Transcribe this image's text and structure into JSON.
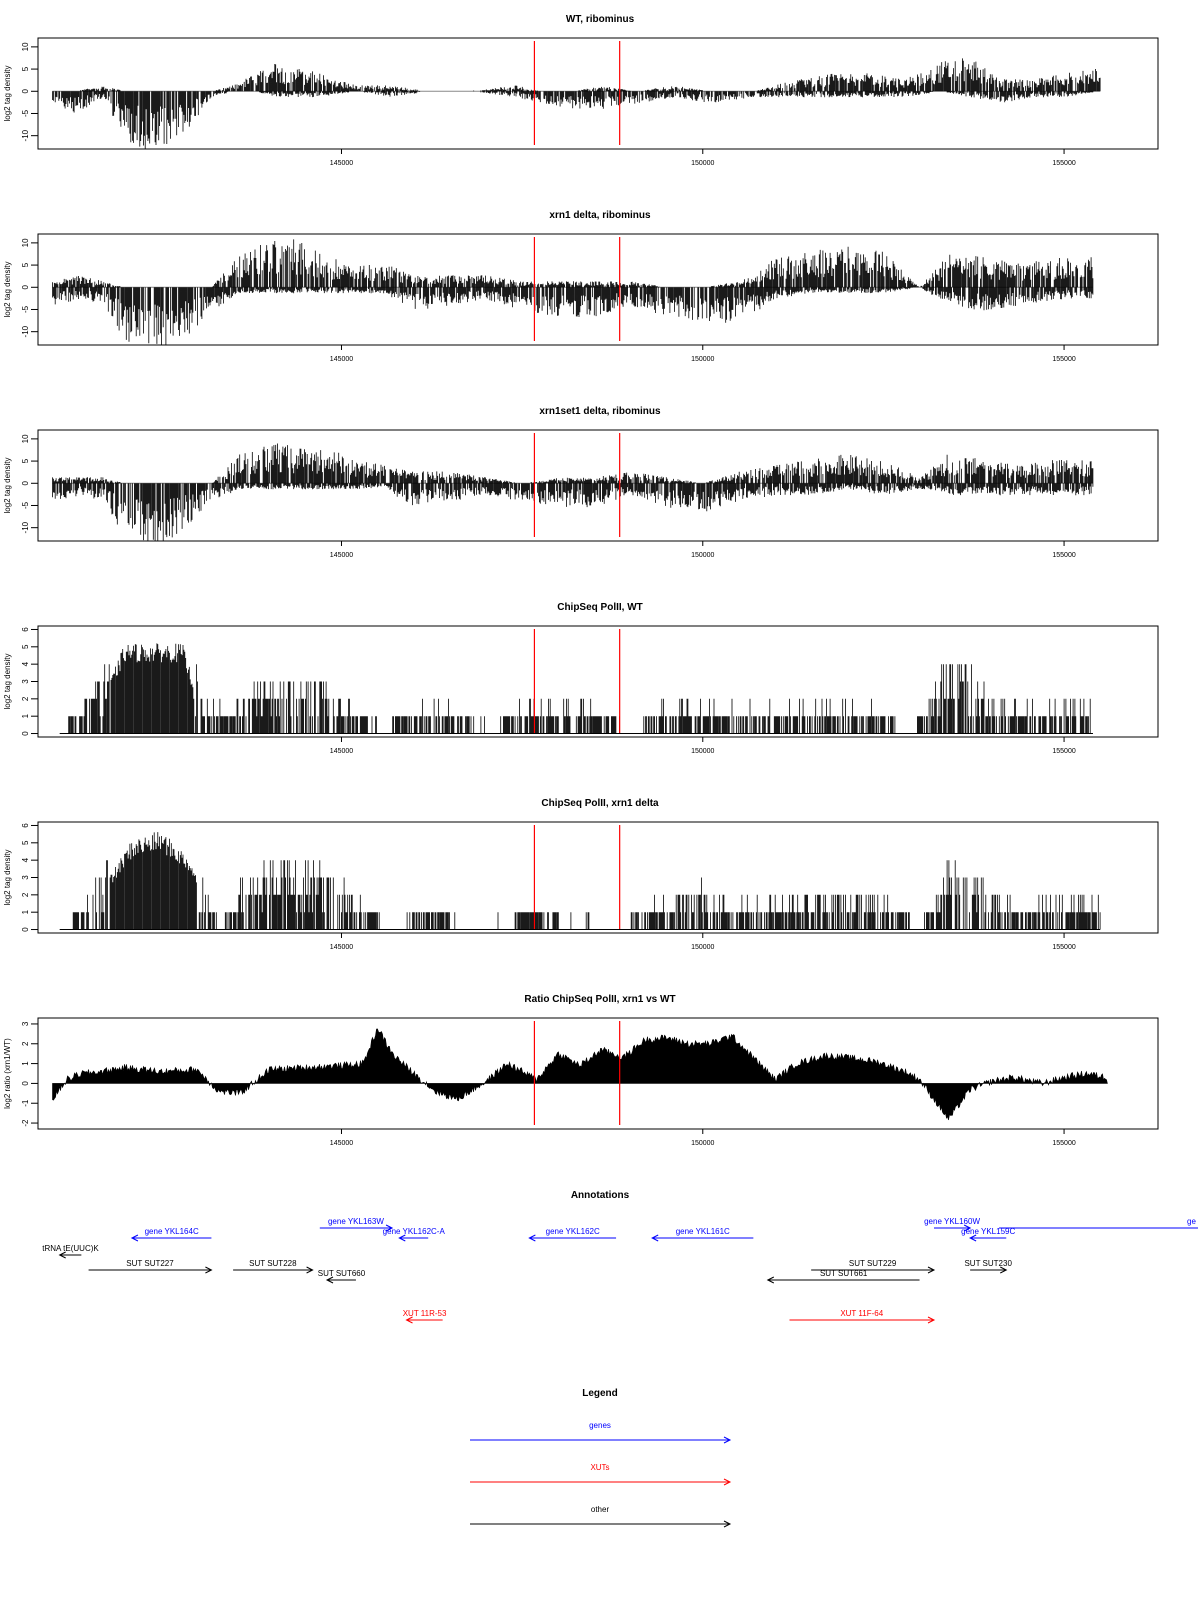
{
  "chart_data": [
    {
      "type": "bar",
      "title": "WT, ribominus",
      "ylabel": "log2 tag density",
      "xlim": [
        140800,
        156300
      ],
      "ylim": [
        -13,
        12
      ],
      "yticks": [
        -10,
        -5,
        0,
        5,
        10
      ],
      "xticks": [
        145000,
        150000,
        155000
      ],
      "marker_lines": [
        147670,
        148850
      ],
      "profile": [
        [
          141000,
          0,
          -2
        ],
        [
          141300,
          0,
          -4
        ],
        [
          141700,
          1,
          -1
        ],
        [
          142000,
          0,
          -8
        ],
        [
          142300,
          0,
          -10
        ],
        [
          142600,
          0,
          -9
        ],
        [
          142900,
          0,
          -6
        ],
        [
          143200,
          0,
          -1
        ],
        [
          143500,
          1,
          0
        ],
        [
          143800,
          3,
          0
        ],
        [
          144100,
          5,
          -1
        ],
        [
          144400,
          4,
          -1
        ],
        [
          144700,
          3,
          -1
        ],
        [
          145200,
          1,
          0
        ],
        [
          145700,
          1,
          -1
        ],
        [
          146200,
          0,
          0
        ],
        [
          146800,
          0,
          0
        ],
        [
          147400,
          1,
          -1
        ],
        [
          147800,
          0,
          -2
        ],
        [
          148200,
          0,
          -3
        ],
        [
          148600,
          1,
          -3
        ],
        [
          149100,
          0,
          -2
        ],
        [
          149600,
          1,
          -1
        ],
        [
          150100,
          0,
          -2
        ],
        [
          150700,
          0,
          -1
        ],
        [
          151300,
          2,
          -1
        ],
        [
          151800,
          3,
          -1
        ],
        [
          152300,
          3,
          -1
        ],
        [
          152800,
          2,
          -1
        ],
        [
          153300,
          5,
          0
        ],
        [
          153700,
          6,
          -1
        ],
        [
          154100,
          2,
          -2
        ],
        [
          154600,
          2,
          -1
        ],
        [
          155000,
          3,
          -1
        ],
        [
          155500,
          4,
          0
        ]
      ]
    },
    {
      "type": "bar",
      "title": "xrn1 delta, ribominus",
      "ylabel": "log2 tag density",
      "xlim": [
        140800,
        156300
      ],
      "ylim": [
        -13,
        12
      ],
      "yticks": [
        -10,
        -5,
        0,
        5,
        10
      ],
      "xticks": [
        145000,
        150000,
        155000
      ],
      "marker_lines": [
        147670,
        148850
      ],
      "profile": [
        [
          141000,
          1,
          -3
        ],
        [
          141400,
          2,
          -2
        ],
        [
          141700,
          1,
          -3
        ],
        [
          142000,
          0,
          -9
        ],
        [
          142300,
          0,
          -11
        ],
        [
          142600,
          0,
          -10
        ],
        [
          142900,
          0,
          -8
        ],
        [
          143200,
          0,
          -4
        ],
        [
          143600,
          6,
          -1
        ],
        [
          144000,
          8,
          -1
        ],
        [
          144400,
          8,
          -1
        ],
        [
          144800,
          5,
          -1
        ],
        [
          145200,
          4,
          -1
        ],
        [
          145600,
          4,
          -1
        ],
        [
          146000,
          2,
          -4
        ],
        [
          146500,
          2,
          -3
        ],
        [
          147000,
          2,
          -2
        ],
        [
          147500,
          1,
          -4
        ],
        [
          148000,
          1,
          -5
        ],
        [
          148500,
          1,
          -5
        ],
        [
          149000,
          1,
          -3
        ],
        [
          149500,
          0,
          -5
        ],
        [
          150000,
          0,
          -6
        ],
        [
          150500,
          1,
          -6
        ],
        [
          151000,
          5,
          -2
        ],
        [
          151500,
          6,
          -1
        ],
        [
          152000,
          7,
          -1
        ],
        [
          152500,
          6,
          -1
        ],
        [
          153000,
          0,
          0
        ],
        [
          153400,
          6,
          -3
        ],
        [
          153900,
          5,
          -4
        ],
        [
          154400,
          4,
          -3
        ],
        [
          154900,
          5,
          -2
        ],
        [
          155400,
          5,
          -2
        ]
      ]
    },
    {
      "type": "bar",
      "title": "xrn1set1 delta, ribominus",
      "ylabel": "log2 tag density",
      "xlim": [
        140800,
        156300
      ],
      "ylim": [
        -13,
        12
      ],
      "yticks": [
        -10,
        -5,
        0,
        5,
        10
      ],
      "xticks": [
        145000,
        150000,
        155000
      ],
      "marker_lines": [
        147670,
        148850
      ],
      "profile": [
        [
          141000,
          1,
          -3
        ],
        [
          141400,
          1,
          -2
        ],
        [
          141700,
          1,
          -3
        ],
        [
          142000,
          0,
          -9
        ],
        [
          142300,
          0,
          -11
        ],
        [
          142600,
          0,
          -10
        ],
        [
          142900,
          0,
          -7
        ],
        [
          143200,
          0,
          -3
        ],
        [
          143600,
          5,
          -1
        ],
        [
          144000,
          7,
          -1
        ],
        [
          144400,
          6,
          -1
        ],
        [
          144800,
          6,
          -1
        ],
        [
          145200,
          4,
          -1
        ],
        [
          145600,
          3,
          -1
        ],
        [
          146000,
          2,
          -4
        ],
        [
          146500,
          2,
          -3
        ],
        [
          147000,
          1,
          -2
        ],
        [
          147500,
          0,
          -3
        ],
        [
          148000,
          1,
          -4
        ],
        [
          148500,
          1,
          -4
        ],
        [
          149000,
          2,
          -2
        ],
        [
          149500,
          1,
          -4
        ],
        [
          150000,
          0,
          -5
        ],
        [
          150500,
          2,
          -3
        ],
        [
          151000,
          3,
          -2
        ],
        [
          151500,
          4,
          -2
        ],
        [
          152000,
          5,
          -1
        ],
        [
          152500,
          4,
          -2
        ],
        [
          153000,
          1,
          -1
        ],
        [
          153400,
          5,
          -2
        ],
        [
          153900,
          4,
          -2
        ],
        [
          154400,
          3,
          -2
        ],
        [
          154900,
          4,
          -2
        ],
        [
          155400,
          4,
          -2
        ]
      ]
    },
    {
      "type": "bar",
      "title": "ChipSeq PolII, WT",
      "ylabel": "log2 tag density",
      "xlim": [
        140800,
        156300
      ],
      "ylim": [
        -0.2,
        6.2
      ],
      "yticks": [
        0,
        1,
        2,
        3,
        4,
        5,
        6
      ],
      "xticks": [
        145000,
        150000,
        155000
      ],
      "marker_lines": [
        147670,
        148850
      ],
      "profile": [
        [
          141100,
          0
        ],
        [
          141400,
          1
        ],
        [
          141700,
          2
        ],
        [
          142000,
          5
        ],
        [
          142400,
          5
        ],
        [
          142800,
          5
        ],
        [
          143100,
          1
        ],
        [
          143500,
          1
        ],
        [
          143900,
          2
        ],
        [
          144300,
          2
        ],
        [
          144700,
          2
        ],
        [
          145100,
          1
        ],
        [
          145500,
          0
        ],
        [
          146000,
          1
        ],
        [
          146500,
          1
        ],
        [
          147000,
          0
        ],
        [
          147500,
          1
        ],
        [
          148000,
          1
        ],
        [
          148500,
          1
        ],
        [
          149000,
          0
        ],
        [
          149400,
          1
        ],
        [
          149800,
          1
        ],
        [
          150300,
          1
        ],
        [
          150800,
          1
        ],
        [
          151300,
          1
        ],
        [
          151800,
          1
        ],
        [
          152300,
          1
        ],
        [
          152900,
          0
        ],
        [
          153400,
          3
        ],
        [
          153800,
          2
        ],
        [
          154200,
          1
        ],
        [
          154600,
          1
        ],
        [
          155000,
          1
        ],
        [
          155400,
          1
        ]
      ]
    },
    {
      "type": "bar",
      "title": "ChipSeq PolII, xrn1 delta",
      "ylabel": "log2 tag density",
      "xlim": [
        140800,
        156300
      ],
      "ylim": [
        -0.2,
        6.2
      ],
      "yticks": [
        0,
        1,
        2,
        3,
        4,
        5,
        6
      ],
      "xticks": [
        145000,
        150000,
        155000
      ],
      "marker_lines": [
        147670,
        148850
      ],
      "profile": [
        [
          141100,
          0
        ],
        [
          141500,
          1
        ],
        [
          141800,
          3
        ],
        [
          142100,
          5
        ],
        [
          142500,
          5.5
        ],
        [
          142900,
          4
        ],
        [
          143300,
          0
        ],
        [
          143700,
          2
        ],
        [
          144000,
          2.5
        ],
        [
          144500,
          2.5
        ],
        [
          144900,
          2
        ],
        [
          145300,
          1
        ],
        [
          145700,
          0
        ],
        [
          146200,
          1
        ],
        [
          146700,
          0
        ],
        [
          147200,
          0
        ],
        [
          147700,
          1
        ],
        [
          148200,
          0
        ],
        [
          148700,
          0
        ],
        [
          149100,
          0.5
        ],
        [
          149500,
          1.5
        ],
        [
          150000,
          1.5
        ],
        [
          150500,
          1
        ],
        [
          151000,
          1
        ],
        [
          151500,
          1.5
        ],
        [
          152000,
          1.5
        ],
        [
          152500,
          1.5
        ],
        [
          153000,
          0
        ],
        [
          153400,
          2.5
        ],
        [
          153800,
          2
        ],
        [
          154300,
          1
        ],
        [
          154700,
          1
        ],
        [
          155100,
          1
        ],
        [
          155500,
          1
        ]
      ]
    },
    {
      "type": "area",
      "title": "Ratio ChipSeq PolII, xrn1 vs WT",
      "ylabel": "log2 ratio (xrn1/WT)",
      "xlim": [
        140800,
        156300
      ],
      "ylim": [
        -2.3,
        3.3
      ],
      "yticks": [
        -2,
        -1,
        0,
        1,
        2,
        3
      ],
      "xticks": [
        145000,
        150000,
        155000
      ],
      "marker_lines": [
        147670,
        148850
      ],
      "x": [
        141000,
        141200,
        141400,
        141700,
        142000,
        142500,
        143000,
        143300,
        143600,
        144000,
        144500,
        145000,
        145300,
        145500,
        145700,
        146000,
        146300,
        146600,
        147000,
        147300,
        147700,
        148000,
        148300,
        148600,
        148900,
        149200,
        149500,
        149800,
        150100,
        150400,
        150700,
        151000,
        151300,
        151700,
        152000,
        152400,
        152800,
        153000,
        153200,
        153400,
        153700,
        154000,
        154300,
        154700,
        155000,
        155300,
        155600
      ],
      "y": [
        -0.8,
        0.2,
        0.5,
        0.6,
        0.8,
        0.6,
        0.7,
        -0.4,
        -0.5,
        0.7,
        0.8,
        0.9,
        1.0,
        2.8,
        1.5,
        0.5,
        -0.4,
        -0.8,
        0.1,
        1.0,
        0.2,
        1.5,
        0.9,
        1.7,
        1.3,
        2.2,
        2.3,
        2.0,
        2.0,
        2.4,
        1.3,
        0.2,
        1.0,
        1.4,
        1.3,
        1.1,
        0.6,
        0.2,
        -0.8,
        -1.8,
        -0.3,
        0.1,
        0.3,
        0.0,
        0.3,
        0.5,
        0.3
      ]
    }
  ],
  "annotations": {
    "title": "Annotations",
    "features": [
      {
        "label": "gene YKL164C",
        "start": 143200,
        "end": 142100,
        "row": 1,
        "kind": "gene"
      },
      {
        "label": "gene YKL163W",
        "start": 144700,
        "end": 145700,
        "row": 0,
        "kind": "gene"
      },
      {
        "label": "gene YKL162C-A",
        "start": 146200,
        "end": 145800,
        "row": 1,
        "kind": "gene"
      },
      {
        "label": "gene YKL162C",
        "start": 148800,
        "end": 147600,
        "row": 1,
        "kind": "gene"
      },
      {
        "label": "gene YKL161C",
        "start": 150700,
        "end": 149300,
        "row": 1,
        "kind": "gene"
      },
      {
        "label": "gene YKL160W",
        "start": 153200,
        "end": 153700,
        "row": 0,
        "kind": "gene"
      },
      {
        "label": "gene YKL159C",
        "start": 154200,
        "end": 153700,
        "row": 1,
        "kind": "gene"
      },
      {
        "label": "ge",
        "start": 154100,
        "end": 156400,
        "row": 0,
        "kind": "gene"
      },
      {
        "label": "tRNA tE(UUC)K",
        "start": 141400,
        "end": 141100,
        "row": 2,
        "kind": "other"
      },
      {
        "label": "SUT SUT227",
        "start": 141500,
        "end": 143200,
        "row": 3,
        "kind": "other"
      },
      {
        "label": "SUT SUT228",
        "start": 143500,
        "end": 144600,
        "row": 3,
        "kind": "other"
      },
      {
        "label": "SUT SUT660",
        "start": 145200,
        "end": 144800,
        "row": 4,
        "kind": "other"
      },
      {
        "label": "SUT SUT229",
        "start": 151500,
        "end": 153200,
        "row": 3,
        "kind": "other"
      },
      {
        "label": "SUT SUT661",
        "start": 153000,
        "end": 150900,
        "row": 4,
        "kind": "other"
      },
      {
        "label": "SUT SUT230",
        "start": 153700,
        "end": 154200,
        "row": 3,
        "kind": "other"
      },
      {
        "label": "XUT 11R-53",
        "start": 146400,
        "end": 145900,
        "row": 5,
        "kind": "xut"
      },
      {
        "label": "XUT 11F-64",
        "start": 151200,
        "end": 153200,
        "row": 5,
        "kind": "xut"
      }
    ]
  },
  "legend": {
    "title": "Legend",
    "items": [
      {
        "label": "genes",
        "kind": "gene"
      },
      {
        "label": "XUTs",
        "kind": "xut"
      },
      {
        "label": "other",
        "kind": "other"
      }
    ]
  },
  "colors": {
    "gene": "#0000ff",
    "xut": "#ff0000",
    "other": "#000000",
    "marker": "#ff0000",
    "axis": "#000000"
  }
}
